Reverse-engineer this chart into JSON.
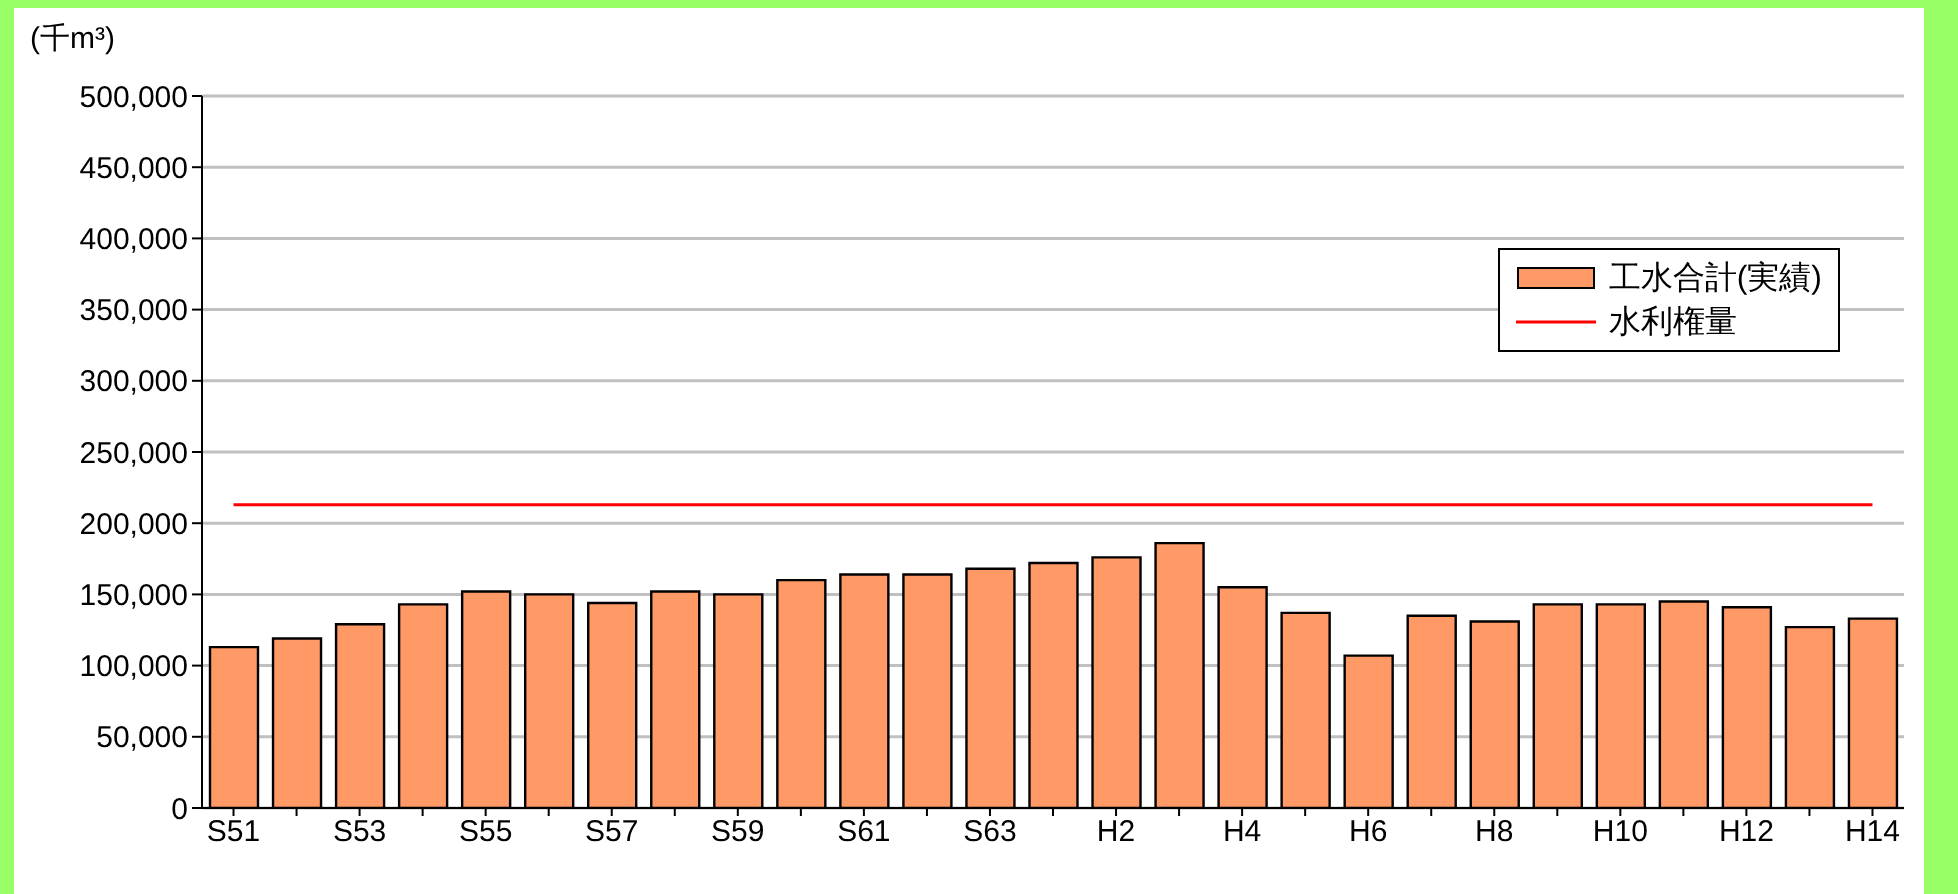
{
  "chart_data": {
    "type": "bar",
    "ylabel": "(千m³)",
    "categories": [
      "S51",
      null,
      "S53",
      null,
      "S55",
      null,
      "S57",
      null,
      "S59",
      null,
      "S61",
      null,
      "S63",
      null,
      "H2",
      null,
      "H4",
      null,
      "H6",
      null,
      "H8",
      null,
      "H10",
      null,
      "H12",
      null,
      "H14"
    ],
    "series": [
      {
        "name": "工水合計(実績)",
        "color": "#ff9966",
        "values": [
          113000,
          119000,
          129000,
          143000,
          152000,
          150000,
          144000,
          152000,
          150000,
          160000,
          164000,
          164000,
          168000,
          172000,
          176000,
          186000,
          155000,
          137000,
          107000,
          135000,
          131000,
          143000,
          143000,
          145000,
          141000,
          127000,
          133000
        ]
      },
      {
        "name": "水利権量",
        "type": "line",
        "color": "#ff0000",
        "values": [
          213000,
          213000,
          213000,
          213000,
          213000,
          213000,
          213000,
          213000,
          213000,
          213000,
          213000,
          213000,
          213000,
          213000,
          213000,
          213000,
          213000,
          213000,
          213000,
          213000,
          213000,
          213000,
          213000,
          213000,
          213000,
          213000,
          213000
        ]
      }
    ],
    "ylim": [
      0,
      500000
    ],
    "yticks": [
      0,
      {
        "value": 50000,
        "label": "50,000"
      },
      {
        "value": 100000,
        "label": "100,000"
      },
      {
        "value": 150000,
        "label": "150,000"
      },
      {
        "value": 200000,
        "label": "200,000"
      },
      {
        "value": 250000,
        "label": "250,000"
      },
      {
        "value": 300000,
        "label": "300,000"
      },
      {
        "value": 350000,
        "label": "350,000"
      },
      {
        "value": 400000,
        "label": "400,000"
      },
      {
        "value": 450000,
        "label": "450,000"
      },
      {
        "value": 500000,
        "label": "500,000"
      }
    ],
    "grid": "y",
    "legend": "top right",
    "marker": "none"
  }
}
